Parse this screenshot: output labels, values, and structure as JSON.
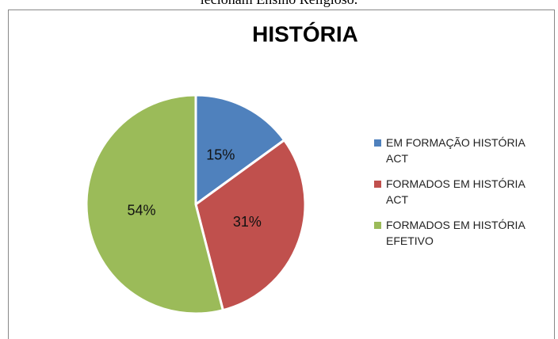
{
  "caption": "lecionam Ensino Religioso.",
  "chart_data": {
    "type": "pie",
    "title": "HISTÓRIA",
    "categories": [
      "EM FORMAÇÃO HISTÓRIA ACT",
      "FORMADOS EM HISTÓRIA ACT",
      "FORMADOS EM HISTÓRIA EFETIVO"
    ],
    "values": [
      15,
      31,
      54
    ],
    "value_labels": [
      "15%",
      "31%",
      "54%"
    ],
    "colors": [
      "#4f81bd",
      "#c0504d",
      "#9bbb59"
    ],
    "legend": "right"
  }
}
